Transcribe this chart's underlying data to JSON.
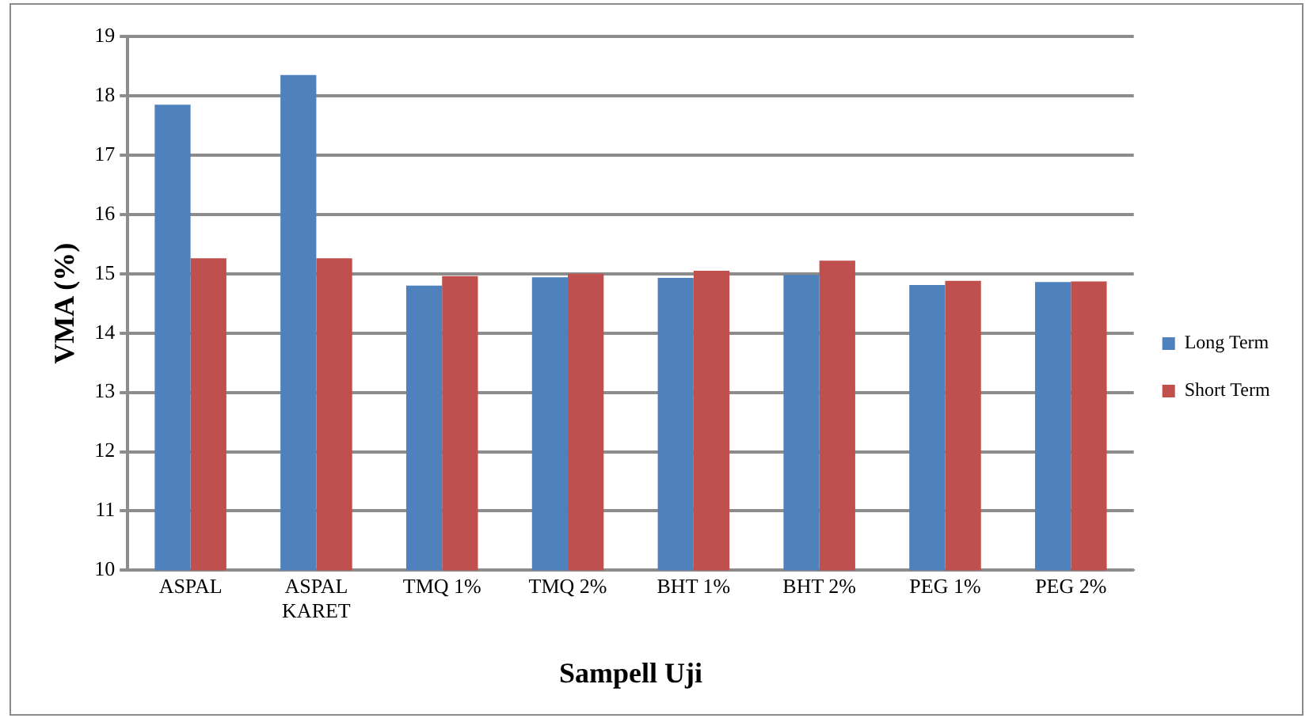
{
  "chart_data": {
    "type": "bar",
    "xlabel": "Sampell Uji",
    "ylabel": "VMA (%)",
    "categories": [
      "ASPAL",
      "ASPAL KARET",
      "TMQ 1%",
      "TMQ 2%",
      "BHT 1%",
      "BHT 2%",
      "PEG 1%",
      "PEG 2%"
    ],
    "series": [
      {
        "name": "Long Term",
        "color": "#4f81bd",
        "values": [
          17.85,
          18.35,
          14.8,
          14.94,
          14.93,
          14.98,
          14.81,
          14.86
        ]
      },
      {
        "name": "Short Term",
        "color": "#c0504d",
        "values": [
          15.26,
          15.26,
          14.96,
          15.0,
          15.05,
          15.22,
          14.88,
          14.87
        ]
      }
    ],
    "ylim": [
      10,
      19
    ],
    "yticks": [
      10,
      11,
      12,
      13,
      14,
      15,
      16,
      17,
      18,
      19
    ],
    "grid": "y",
    "legend": "right"
  }
}
